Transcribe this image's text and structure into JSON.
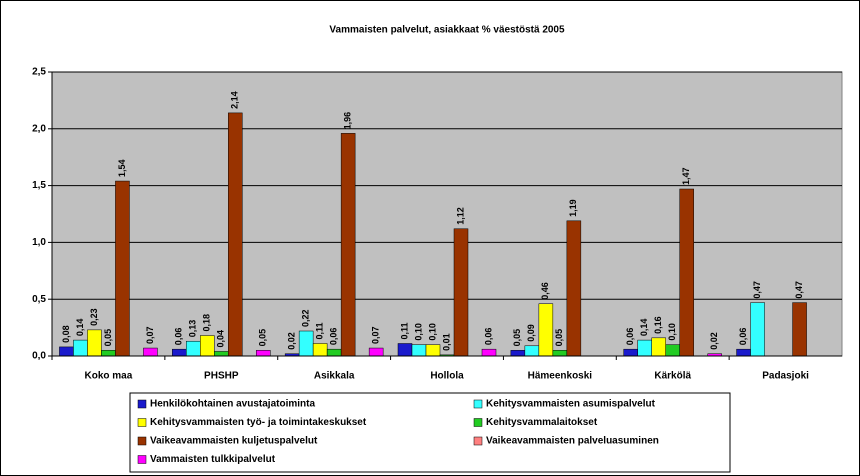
{
  "chart_data": {
    "type": "bar",
    "title": "Vammaisten palvelut, asiakkaat % väestöstä 2005",
    "categories": [
      "Koko maa",
      "PHSHP",
      "Asikkala",
      "Hollola",
      "Hämeenkoski",
      "Kärkölä",
      "Padasjoki"
    ],
    "series": [
      {
        "name": "Henkilökohtainen avustajatoiminta",
        "color": "#1a1acc",
        "values": [
          0.08,
          0.06,
          0.02,
          0.11,
          0.05,
          0.06,
          0.06
        ],
        "value_labels": [
          "0,08",
          "0,06",
          "0,02",
          "0,11",
          "0,05",
          "0,06",
          "0,06"
        ]
      },
      {
        "name": "Kehitysvammaisten asumispalvelut",
        "color": "#33ffff",
        "values": [
          0.14,
          0.13,
          0.22,
          0.1,
          0.09,
          0.14,
          0.47
        ],
        "value_labels": [
          "0,14",
          "0,13",
          "0,22",
          "0,10",
          "0,09",
          "0,14",
          "0,47"
        ]
      },
      {
        "name": "Kehitysvammaisten työ- ja toimintakeskukset",
        "color": "#ffff00",
        "values": [
          0.23,
          0.18,
          0.11,
          0.1,
          0.46,
          0.16,
          null
        ],
        "value_labels": [
          "0,23",
          "0,18",
          "0,11",
          "0,10",
          "0,46",
          "0,16",
          null
        ]
      },
      {
        "name": "Kehitysvammalaitokset",
        "color": "#22cc22",
        "values": [
          0.05,
          0.04,
          0.06,
          0.01,
          0.05,
          0.1,
          null
        ],
        "value_labels": [
          "0,05",
          "0,04",
          "0,06",
          "0,01",
          "0,05",
          "0,10",
          null
        ]
      },
      {
        "name": "Vaikeavammaisten kuljetuspalvelut",
        "color": "#993300",
        "values": [
          1.54,
          2.14,
          1.96,
          1.12,
          1.19,
          1.47,
          0.47
        ],
        "value_labels": [
          "1,54",
          "2,14",
          "1,96",
          "1,12",
          "1,19",
          "1,47",
          "0,47"
        ]
      },
      {
        "name": "Vaikeavammaisten palveluasuminen",
        "color": "#ff8080",
        "values": [
          null,
          null,
          null,
          null,
          null,
          null,
          null
        ],
        "value_labels": [
          null,
          null,
          null,
          null,
          null,
          null,
          null
        ]
      },
      {
        "name": "Vammaisten tulkkipalvelut",
        "color": "#ff00ff",
        "values": [
          0.07,
          0.05,
          0.07,
          0.06,
          null,
          0.02,
          null
        ],
        "value_labels": [
          "0,07",
          "0,05",
          "0,07",
          "0,06",
          null,
          "0,02",
          null
        ]
      }
    ],
    "ylim": [
      0,
      2.5
    ],
    "yticks": [
      {
        "value": 0,
        "label": "0,0"
      },
      {
        "value": 0.5,
        "label": "0,5"
      },
      {
        "value": 1,
        "label": "1,0"
      },
      {
        "value": 1.5,
        "label": "1,5"
      },
      {
        "value": 2,
        "label": "2,0"
      },
      {
        "value": 2.5,
        "label": "2,5"
      }
    ],
    "grid": true
  }
}
